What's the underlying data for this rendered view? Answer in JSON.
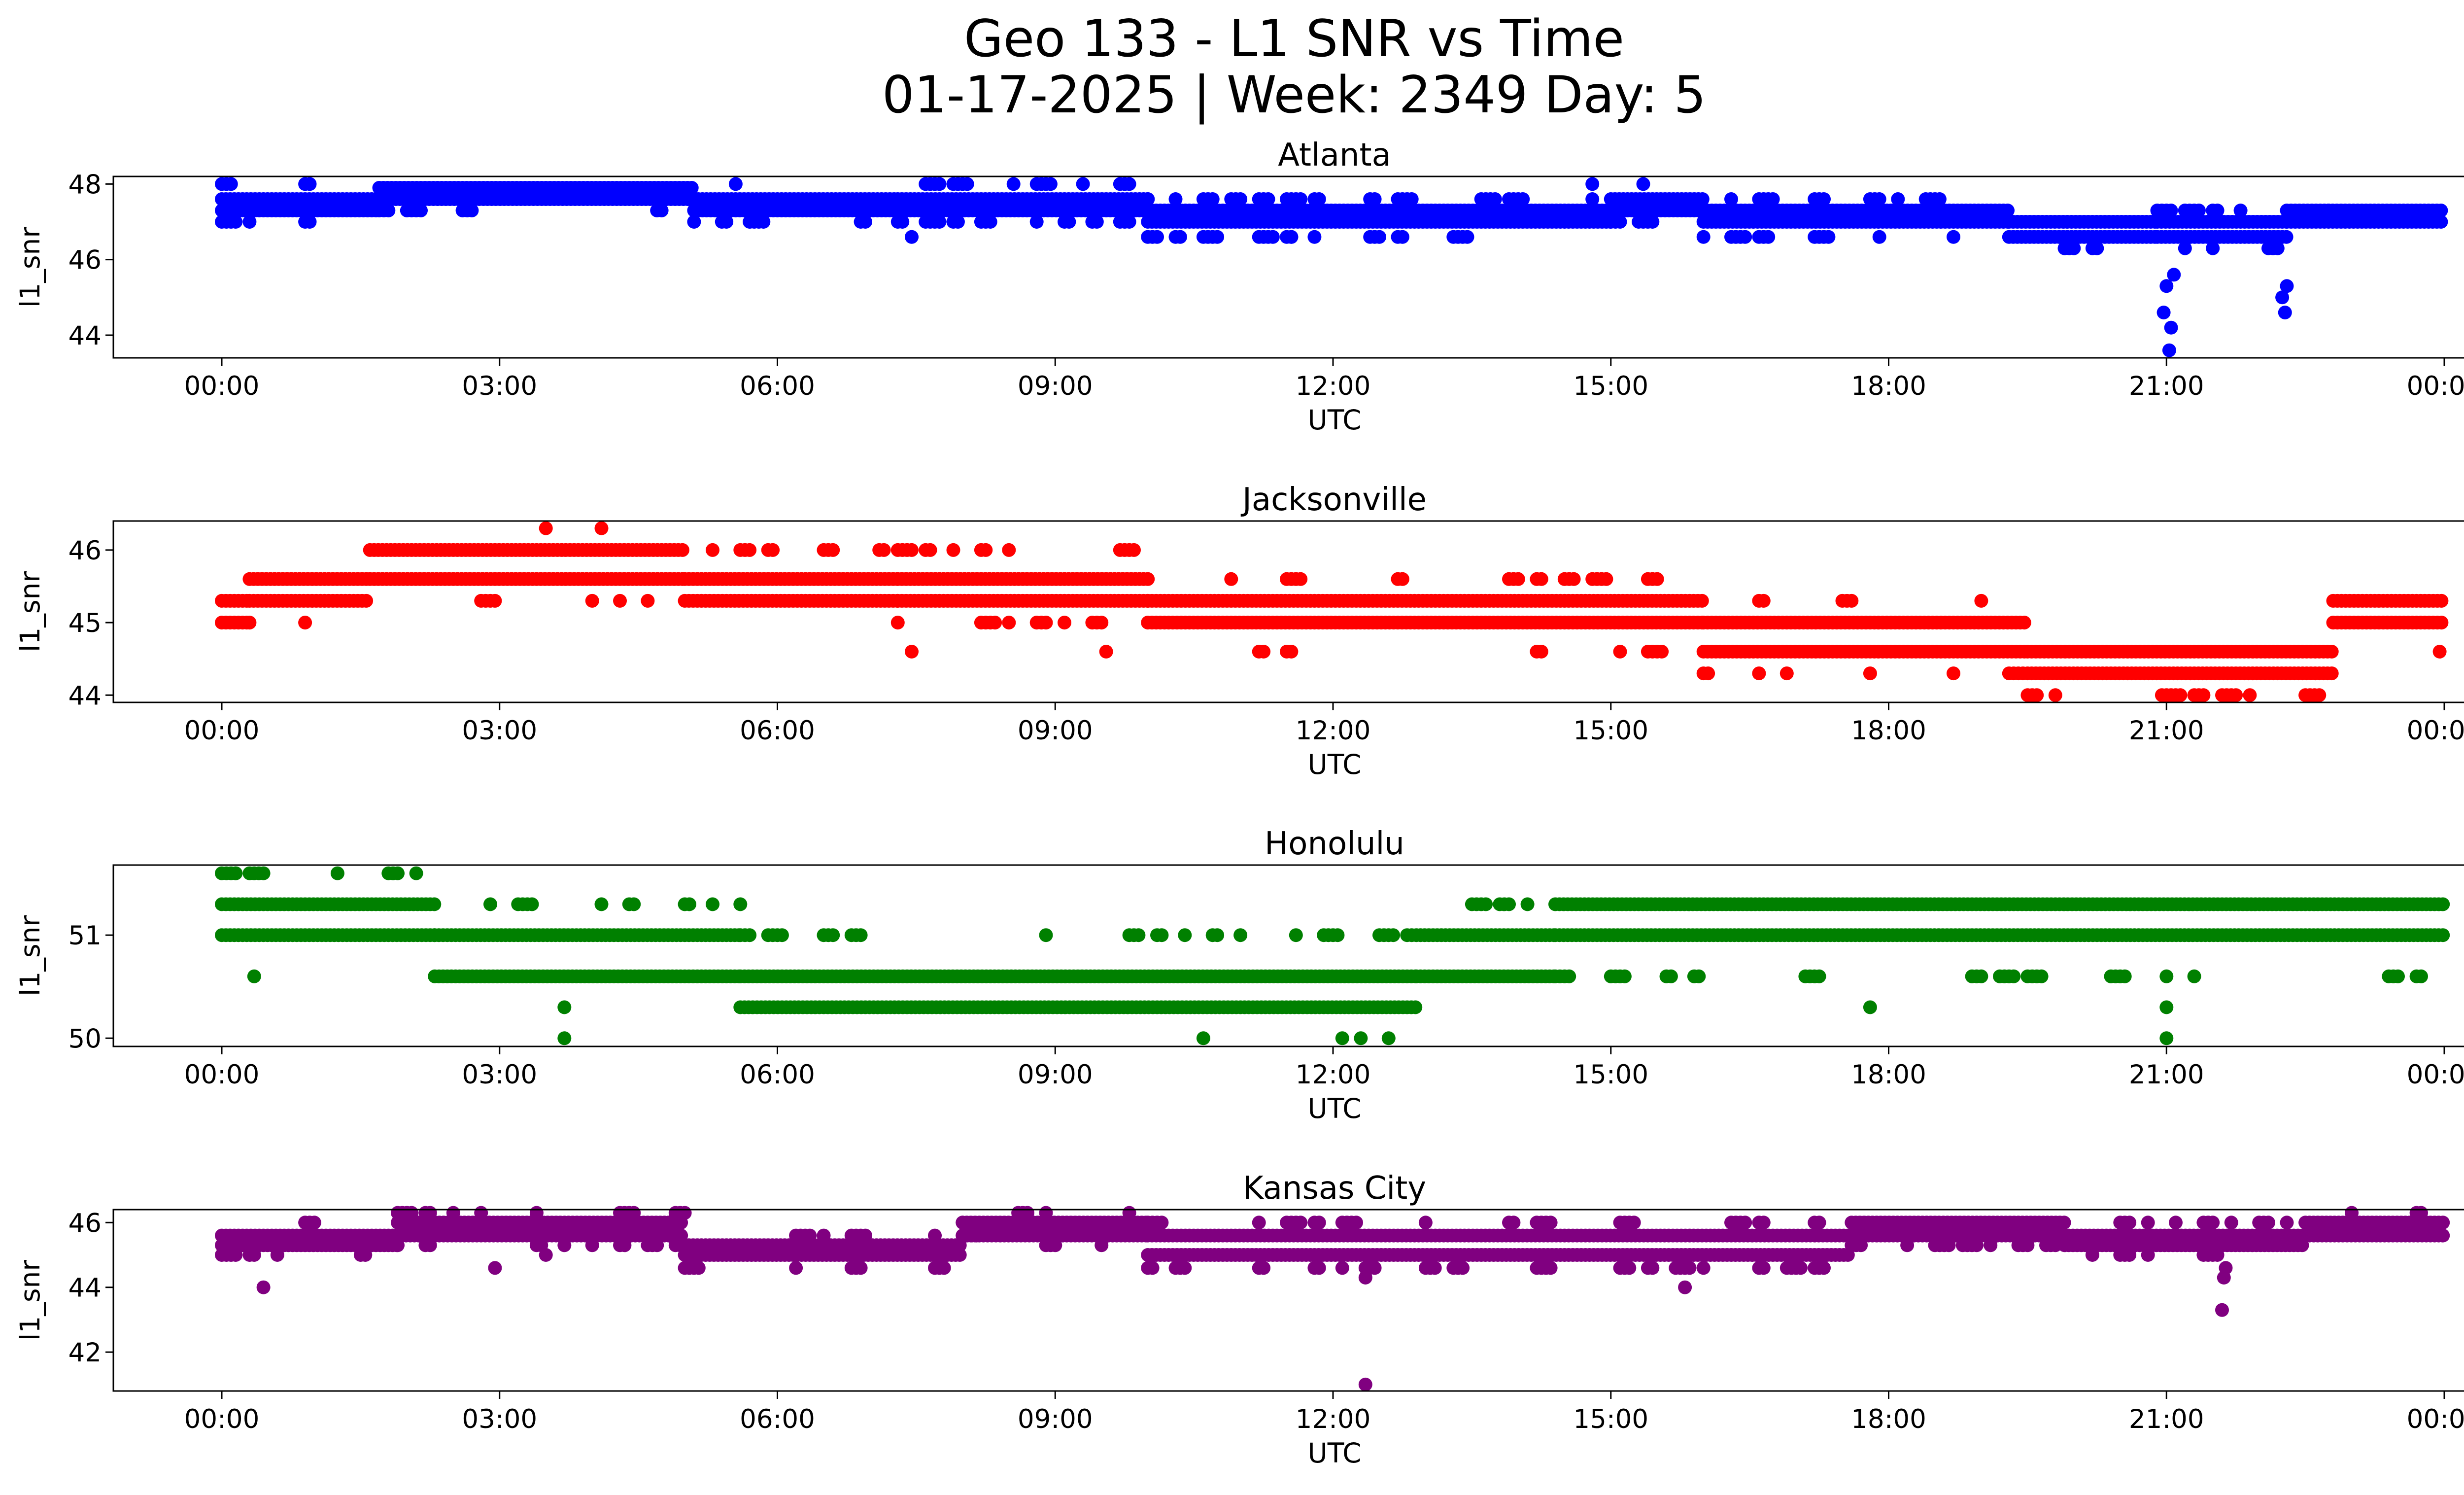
{
  "title_line1": "Geo 133 - L1 SNR vs Time",
  "title_line2": "01-17-2025 | Week: 2349 Day: 5",
  "chart_data": [
    {
      "type": "scatter",
      "title": "Atlanta",
      "xlabel": "UTC",
      "ylabel": "l1_snr",
      "color": "#0000ff",
      "x_ticks": [
        "00:00",
        "03:00",
        "06:00",
        "09:00",
        "12:00",
        "15:00",
        "18:00",
        "21:00",
        "00:00"
      ],
      "y_ticks": [
        44,
        46,
        48
      ],
      "ylim": [
        43.4,
        48.2
      ],
      "segments": [
        {
          "x": [
            0.0,
            1.7
          ],
          "levels": [
            47.3,
            47.6
          ],
          "sparse": [
            47.0,
            48.0
          ]
        },
        {
          "x": [
            1.7,
            5.1
          ],
          "levels": [
            47.6,
            47.9
          ],
          "sparse": [
            47.3
          ]
        },
        {
          "x": [
            5.1,
            7.3
          ],
          "levels": [
            47.3,
            47.6
          ],
          "sparse": [
            47.0
          ]
        },
        {
          "x": [
            7.3,
            10.0
          ],
          "levels": [
            47.3,
            47.6
          ],
          "sparse": [
            47.0,
            48.0
          ]
        },
        {
          "x": [
            10.0,
            15.0
          ],
          "levels": [
            47.0,
            47.3
          ],
          "sparse": [
            46.6,
            47.6
          ]
        },
        {
          "x": [
            15.0,
            16.0
          ],
          "levels": [
            47.3,
            47.6
          ],
          "sparse": [
            47.0
          ]
        },
        {
          "x": [
            16.0,
            19.3
          ],
          "levels": [
            47.0,
            47.3
          ],
          "sparse": [
            46.6,
            47.6
          ]
        },
        {
          "x": [
            19.3,
            20.9
          ],
          "levels": [
            46.6,
            47.0
          ],
          "sparse": [
            46.3
          ]
        },
        {
          "x": [
            20.9,
            22.3
          ],
          "levels": [
            46.6,
            47.0
          ],
          "sparse": [
            46.3,
            47.3
          ]
        },
        {
          "x": [
            22.3,
            24.0
          ],
          "levels": [
            47.0,
            47.3
          ],
          "sparse": []
        }
      ],
      "outliers": [
        [
          20.97,
          44.6
        ],
        [
          21.05,
          44.2
        ],
        [
          21.03,
          43.6
        ],
        [
          21.0,
          45.3
        ],
        [
          21.08,
          45.6
        ],
        [
          22.25,
          45.0
        ],
        [
          22.28,
          44.6
        ],
        [
          22.3,
          45.3
        ],
        [
          7.45,
          46.6
        ],
        [
          11.55,
          46.6
        ],
        [
          17.9,
          46.6
        ],
        [
          8.55,
          48.0
        ],
        [
          8.95,
          48.0
        ],
        [
          9.3,
          48.0
        ],
        [
          14.8,
          48.0
        ],
        [
          15.35,
          48.0
        ],
        [
          5.55,
          48.0
        ],
        [
          22.75,
          47.3
        ]
      ]
    },
    {
      "type": "scatter",
      "title": "Jacksonville",
      "xlabel": "UTC",
      "ylabel": "l1_snr",
      "color": "#ff0000",
      "x_ticks": [
        "00:00",
        "03:00",
        "06:00",
        "09:00",
        "12:00",
        "15:00",
        "18:00",
        "21:00",
        "00:00"
      ],
      "y_ticks": [
        44,
        45,
        46
      ],
      "ylim": [
        43.9,
        46.4
      ],
      "segments": [
        {
          "x": [
            0.0,
            0.3
          ],
          "levels": [
            45.0,
            45.3
          ],
          "sparse": []
        },
        {
          "x": [
            0.3,
            1.6
          ],
          "levels": [
            45.3,
            45.6
          ],
          "sparse": [
            45.0
          ]
        },
        {
          "x": [
            1.6,
            5.0
          ],
          "levels": [
            45.6,
            46.0
          ],
          "sparse": [
            45.3
          ]
        },
        {
          "x": [
            5.0,
            7.3
          ],
          "levels": [
            45.3,
            45.6
          ],
          "sparse": [
            46.0
          ]
        },
        {
          "x": [
            7.3,
            10.0
          ],
          "levels": [
            45.3,
            45.6
          ],
          "sparse": [
            45.0,
            46.0
          ]
        },
        {
          "x": [
            10.0,
            16.0
          ],
          "levels": [
            45.0,
            45.3
          ],
          "sparse": [
            44.6,
            45.6
          ]
        },
        {
          "x": [
            16.0,
            19.5
          ],
          "levels": [
            44.6,
            45.0
          ],
          "sparse": [
            44.3,
            45.3
          ]
        },
        {
          "x": [
            19.5,
            22.8
          ],
          "levels": [
            44.3,
            44.6
          ],
          "sparse": [
            44.0
          ]
        },
        {
          "x": [
            22.8,
            24.0
          ],
          "levels": [
            45.0,
            45.3
          ],
          "sparse": []
        }
      ],
      "outliers": [
        [
          3.5,
          46.3
        ],
        [
          4.1,
          46.3
        ],
        [
          7.45,
          44.6
        ],
        [
          9.55,
          44.6
        ],
        [
          23.95,
          44.6
        ],
        [
          21.9,
          44.0
        ],
        [
          20.95,
          44.0
        ]
      ]
    },
    {
      "type": "scatter",
      "title": "Honolulu",
      "xlabel": "UTC",
      "ylabel": "l1_snr",
      "color": "#008000",
      "x_ticks": [
        "00:00",
        "03:00",
        "06:00",
        "09:00",
        "12:00",
        "15:00",
        "18:00",
        "21:00",
        "00:00"
      ],
      "y_ticks": [
        50,
        51
      ],
      "ylim": [
        49.92,
        51.68
      ],
      "segments": [
        {
          "x": [
            0.0,
            2.3
          ],
          "levels": [
            51.0,
            51.3
          ],
          "sparse": [
            51.6
          ]
        },
        {
          "x": [
            2.3,
            5.6
          ],
          "levels": [
            51.0,
            50.6
          ],
          "sparse": [
            51.3
          ]
        },
        {
          "x": [
            5.6,
            12.9
          ],
          "levels": [
            50.6,
            50.3
          ],
          "sparse": [
            51.0
          ]
        },
        {
          "x": [
            12.9,
            14.4
          ],
          "levels": [
            51.0,
            50.6
          ],
          "sparse": [
            51.3
          ]
        },
        {
          "x": [
            14.4,
            24.0
          ],
          "levels": [
            51.0,
            51.3
          ],
          "sparse": [
            50.6
          ]
        }
      ],
      "outliers": [
        [
          0.15,
          51.6
        ],
        [
          1.25,
          51.6
        ],
        [
          0.35,
          50.6
        ],
        [
          3.7,
          50.3
        ],
        [
          3.7,
          50.0
        ],
        [
          10.6,
          50.0
        ],
        [
          12.1,
          50.0
        ],
        [
          12.3,
          50.0
        ],
        [
          12.6,
          50.0
        ],
        [
          17.8,
          50.3
        ],
        [
          21.0,
          50.0
        ],
        [
          21.0,
          50.3
        ]
      ]
    },
    {
      "type": "scatter",
      "title": "Kansas City",
      "xlabel": "UTC",
      "ylabel": "l1_snr",
      "color": "#800080",
      "x_ticks": [
        "00:00",
        "03:00",
        "06:00",
        "09:00",
        "12:00",
        "15:00",
        "18:00",
        "21:00",
        "00:00"
      ],
      "y_ticks": [
        42,
        44,
        46
      ],
      "ylim": [
        40.8,
        46.4
      ],
      "segments": [
        {
          "x": [
            0.0,
            1.9
          ],
          "levels": [
            45.3,
            45.6
          ],
          "sparse": [
            45.0,
            46.0
          ]
        },
        {
          "x": [
            1.9,
            5.0
          ],
          "levels": [
            45.6,
            46.0
          ],
          "sparse": [
            45.3,
            46.3
          ]
        },
        {
          "x": [
            5.0,
            8.0
          ],
          "levels": [
            45.0,
            45.3
          ],
          "sparse": [
            45.6,
            44.6
          ]
        },
        {
          "x": [
            8.0,
            10.0
          ],
          "levels": [
            45.6,
            46.0
          ],
          "sparse": [
            45.3,
            46.3
          ]
        },
        {
          "x": [
            10.0,
            17.6
          ],
          "levels": [
            45.0,
            45.6
          ],
          "sparse": [
            44.6,
            46.0
          ]
        },
        {
          "x": [
            17.6,
            19.9
          ],
          "levels": [
            45.6,
            46.0
          ],
          "sparse": [
            45.3
          ]
        },
        {
          "x": [
            19.9,
            22.5
          ],
          "levels": [
            45.3,
            45.6
          ],
          "sparse": [
            45.0,
            46.0
          ]
        },
        {
          "x": [
            22.5,
            24.0
          ],
          "levels": [
            45.6,
            46.0
          ],
          "sparse": [
            46.3
          ]
        }
      ],
      "outliers": [
        [
          0.45,
          44.0
        ],
        [
          2.95,
          44.6
        ],
        [
          3.5,
          45.0
        ],
        [
          12.35,
          41.0
        ],
        [
          12.35,
          44.3
        ],
        [
          12.35,
          44.6
        ],
        [
          15.8,
          44.0
        ],
        [
          21.6,
          43.3
        ],
        [
          21.62,
          44.3
        ],
        [
          21.64,
          44.6
        ],
        [
          8.0,
          46.0
        ],
        [
          8.9,
          46.3
        ],
        [
          23.0,
          46.3
        ],
        [
          3.4,
          46.3
        ]
      ]
    }
  ]
}
